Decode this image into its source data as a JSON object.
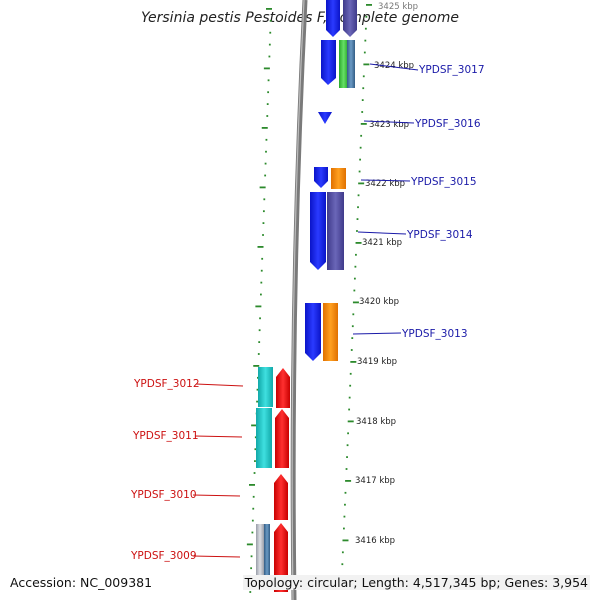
{
  "title": "Yersinia pestis Pestoides F, complete genome",
  "accession": "Accession: NC_009381",
  "topology": "Topology: circular; Length: 4,517,345 bp; Genes: 3,954",
  "colors": {
    "backbone": "#7a7a7a",
    "tick": "#2c8a2c",
    "forward_label": "#1a1aa8",
    "reverse_label": "#cc1111",
    "blue": "#1f2bff",
    "slate": "#5a55a8",
    "green": "#3fcc3f",
    "orange": "#ff8c00",
    "cyan": "#22c6c6",
    "red": "#ee1111",
    "grey": "#b9bcc6",
    "steel": "#4a7aa5"
  },
  "kbp_labels": [
    "3425 kbp",
    "3424 kbp",
    "3423 kbp",
    "3422 kbp",
    "3421 kbp",
    "3420 kbp",
    "3419 kbp",
    "3418 kbp",
    "3417 kbp",
    "3416 kbp"
  ],
  "forward_genes": [
    "YPDSF_3017",
    "YPDSF_3016",
    "YPDSF_3015",
    "YPDSF_3014",
    "YPDSF_3013"
  ],
  "reverse_genes": [
    "YPDSF_3012",
    "YPDSF_3011",
    "YPDSF_3010",
    "YPDSF_3009"
  ]
}
